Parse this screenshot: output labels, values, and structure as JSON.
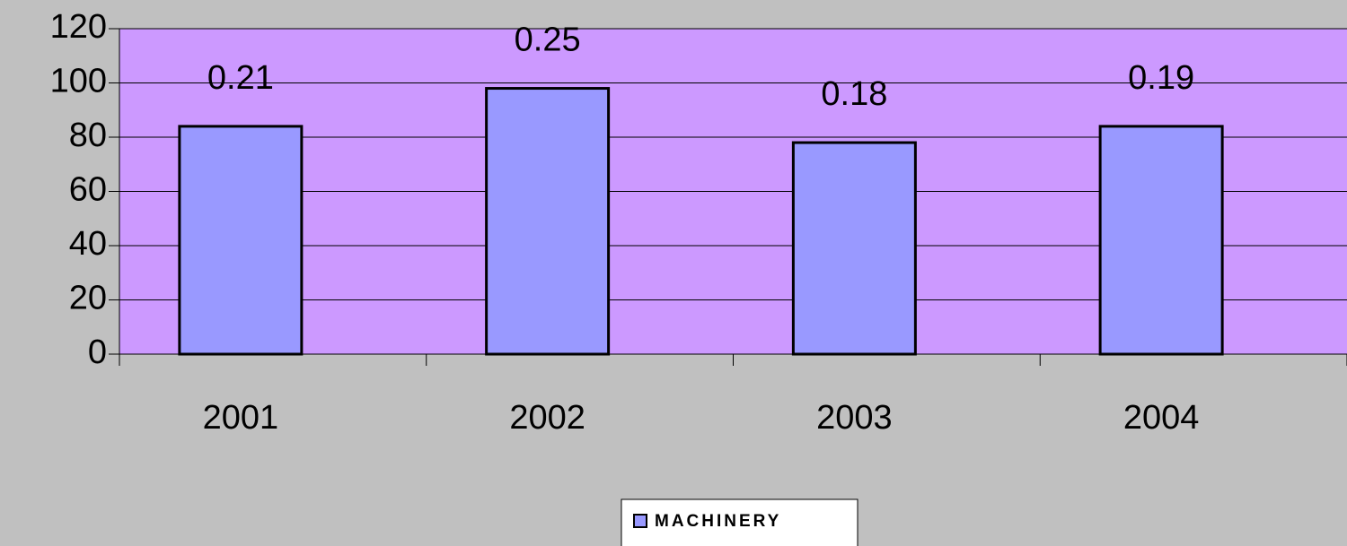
{
  "chart_data": {
    "type": "bar",
    "categories": [
      "2001",
      "2002",
      "2003",
      "2004"
    ],
    "series": [
      {
        "name": "MACHINERY",
        "color": "#9999ff",
        "values": [
          84,
          98,
          78,
          84
        ]
      }
    ],
    "annotations": [
      "0.21",
      "0.25",
      "0.18",
      "0.19"
    ],
    "ylim": [
      0,
      120
    ],
    "yticks": [
      0,
      20,
      40,
      60,
      80,
      100,
      120
    ],
    "grid": true,
    "plot_color": "#cc99ff",
    "legend": "bottom"
  }
}
